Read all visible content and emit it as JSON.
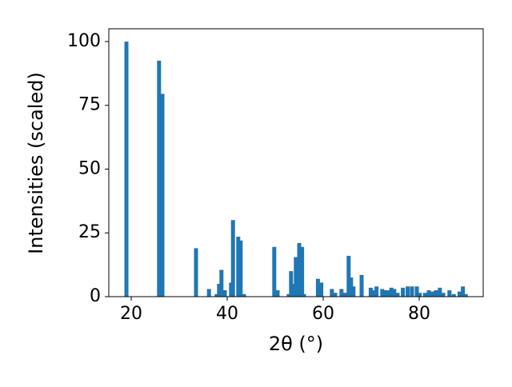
{
  "chart_data": {
    "type": "bar",
    "xlabel": "2θ (°)",
    "ylabel": "Intensities (scaled)",
    "x": [
      19.0,
      25.8,
      26.5,
      33.5,
      36.2,
      37.8,
      38.3,
      38.8,
      39.5,
      40.8,
      41.2,
      42.3,
      42.8,
      43.5,
      49.8,
      50.5,
      52.8,
      53.3,
      53.8,
      54.3,
      55.0,
      55.6,
      56.0,
      58.9,
      59.6,
      61.8,
      62.5,
      63.8,
      64.5,
      65.3,
      65.8,
      66.3,
      68.0,
      69.9,
      70.5,
      71.1,
      72.3,
      72.9,
      73.5,
      74.2,
      74.8,
      75.5,
      76.6,
      77.6,
      78.5,
      79.5,
      80.1,
      81.2,
      82.0,
      82.8,
      83.5,
      84.3,
      85.0,
      86.3,
      87.2,
      88.4,
      89.1,
      89.7
    ],
    "values": [
      100,
      92.5,
      79.5,
      19,
      3,
      1,
      5,
      10.5,
      2.5,
      5.5,
      30,
      23.5,
      22,
      1,
      19.5,
      2.5,
      1,
      10,
      5,
      15.5,
      21,
      19.5,
      1,
      7,
      5.5,
      3,
      1.5,
      3,
      1.5,
      16,
      7.5,
      4,
      8.5,
      3.5,
      2.5,
      4,
      3,
      2.5,
      2.5,
      3.5,
      3,
      1.5,
      3.5,
      4,
      4,
      4,
      1.5,
      1.5,
      2.5,
      2,
      2.5,
      3.5,
      1.5,
      2.5,
      1,
      2,
      4,
      1
    ],
    "color": "#1f77b4",
    "xlim": [
      15.33,
      93.33
    ],
    "xticks": [
      20,
      40,
      60,
      80
    ],
    "ylim": [
      0,
      105
    ],
    "yticks": [
      0,
      25,
      50,
      75,
      100
    ],
    "grid": false
  }
}
